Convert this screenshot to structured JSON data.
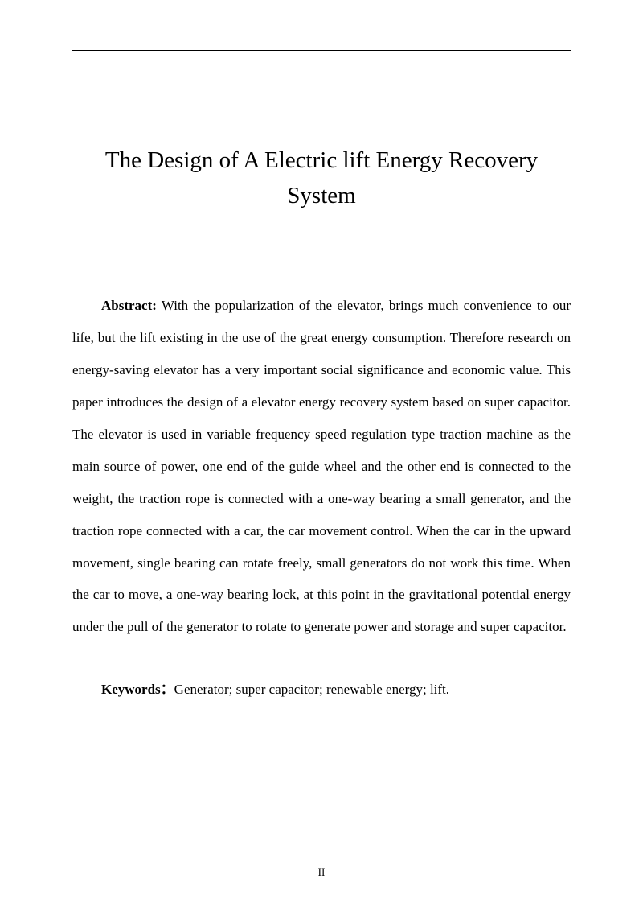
{
  "title": "The Design of A Electric lift Energy Recovery System",
  "abstract": {
    "label": "Abstract:",
    "text": " With the popularization of the elevator, brings much convenience to our life, but the lift existing in the use of the great energy consumption. Therefore research on energy-saving elevator has a very important social significance and economic value. This paper introduces the design of a elevator energy recovery system based on super capacitor. The elevator is used in variable frequency speed regulation type traction machine as the main source of power, one end of the guide wheel and the other end is connected to the weight, the traction rope is connected with a one-way bearing a small generator, and the traction rope connected with a car, the car movement control. When the car in the upward movement, single bearing can rotate freely, small generators do not work this time. When the car to move, a one-way bearing lock, at this point in the gravitational potential energy under the pull of the generator to rotate to generate power and storage and super capacitor."
  },
  "keywords": {
    "label": "Keywords：",
    "text": "Generator; super capacitor; renewable energy; lift."
  },
  "pageNumber": "II"
}
